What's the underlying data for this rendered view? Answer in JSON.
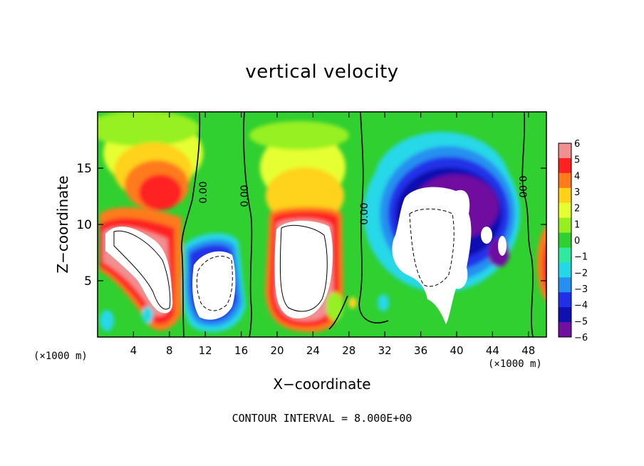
{
  "chart_data": {
    "type": "heatmap",
    "title": "vertical velocity",
    "xlabel": "X−coordinate",
    "ylabel": "Z−coordinate",
    "x_scale_note": "(×1000 m)",
    "x_ticks": [
      4,
      8,
      12,
      16,
      20,
      24,
      28,
      32,
      36,
      40,
      44,
      48
    ],
    "y_ticks": [
      5,
      10,
      15
    ],
    "xlim": [
      0,
      50
    ],
    "ylim": [
      0,
      20
    ],
    "contour_interval_text": "CONTOUR INTERVAL = 8.000E+00",
    "contour_labels": [
      "0.00",
      "0.00",
      "0.00",
      "0.00"
    ],
    "colorbar": {
      "tick_labels": [
        "6",
        "5",
        "4",
        "3",
        "2",
        "1",
        "0",
        "−1",
        "−2",
        "−3",
        "−4",
        "−5",
        "−6"
      ],
      "range": [
        -6,
        6
      ],
      "colors": [
        "#f09090",
        "#ff2020",
        "#ff7a1a",
        "#ffd21a",
        "#e6ff30",
        "#96f020",
        "#30d030",
        "#30e8a0",
        "#25d8e8",
        "#2590f0",
        "#2030e8",
        "#1010b0",
        "#7010a0"
      ]
    },
    "features": [
      {
        "kind": "updraft",
        "x_range": [
          0,
          10
        ],
        "z_range": [
          1,
          14
        ],
        "peak": ">8"
      },
      {
        "kind": "downdraft",
        "x_range": [
          10,
          16
        ],
        "z_range": [
          1,
          9
        ],
        "peak": "<-8"
      },
      {
        "kind": "updraft",
        "x_range": [
          18,
          27
        ],
        "z_range": [
          1,
          13
        ],
        "peak": ">8"
      },
      {
        "kind": "downdraft",
        "x_range": [
          32,
          46
        ],
        "z_range": [
          1,
          17
        ],
        "peak": "<-8"
      },
      {
        "kind": "updraft",
        "x_range": [
          48,
          50
        ],
        "z_range": [
          2,
          10
        ],
        "peak": "6"
      }
    ]
  }
}
